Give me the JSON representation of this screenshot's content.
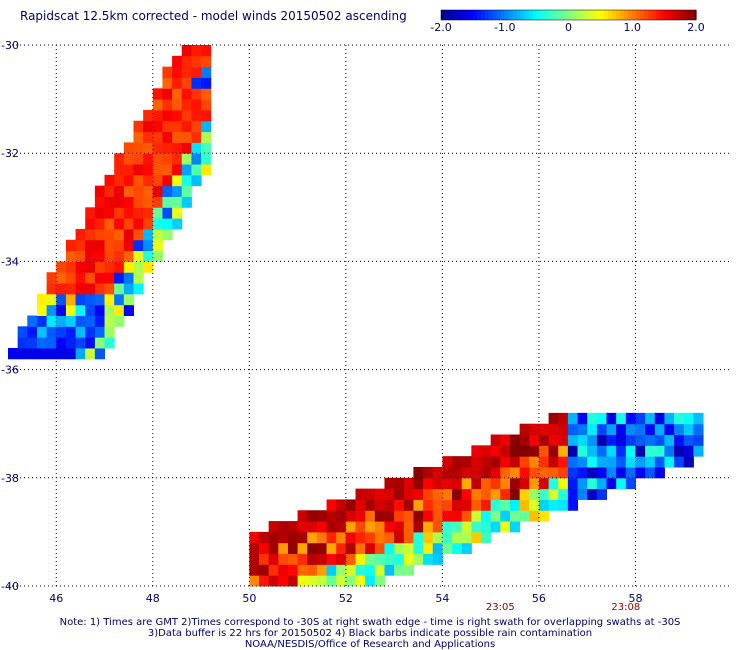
{
  "title": "Rapidscat 12.5km corrected - model winds 20150502 ascending",
  "colorbar": {
    "min": -2.0,
    "max": 2.0,
    "tick_labels": [
      "-2.0",
      "-1.0",
      "0",
      "1.0",
      "2.0"
    ],
    "colormap": [
      "#00008f",
      "#0000ff",
      "#0080ff",
      "#00ffff",
      "#80ff80",
      "#ffff00",
      "#ff8000",
      "#ff0000",
      "#800000"
    ]
  },
  "map": {
    "lon_range": [
      45,
      60
    ],
    "lat_range": [
      -40,
      -30
    ],
    "lon_ticks": [
      "46",
      "48",
      "50",
      "52",
      "54",
      "56",
      "58"
    ],
    "lat_ticks": [
      "-30",
      "-32",
      "-34",
      "-36",
      "-38",
      "-40"
    ],
    "gridlines": "dotted",
    "time_labels": [
      {
        "text": "23:05",
        "lon": 55.2
      },
      {
        "text": "23:08",
        "lon": 57.8
      }
    ]
  },
  "swaths": [
    {
      "name": "northwest-swath",
      "lon_range": [
        45.0,
        49.2
      ],
      "lat_range": [
        -35.8,
        -30.0
      ],
      "dominant_values": "positive (1.0 to 2.0) with negative edges"
    },
    {
      "name": "southeast-swath",
      "lon_range": [
        50.0,
        59.4
      ],
      "lat_range": [
        -40.0,
        -36.8
      ],
      "dominant_values": "mixed, negative in east, positive in center"
    }
  ],
  "notes": {
    "line1": "Note: 1) Times are GMT 2)Times correspond to -30S at right swath edge - time is right swath for overlapping swaths at -30S",
    "line2": "3)Data buffer is 22 hrs for 20150502 4) Black barbs indicate possible rain contamination",
    "line3": "NOAA/NESDIS/Office of Research and Applications"
  },
  "style": {
    "text_color": "#00007a",
    "time_label_color": "#a00000",
    "grid_color": "#000000"
  }
}
